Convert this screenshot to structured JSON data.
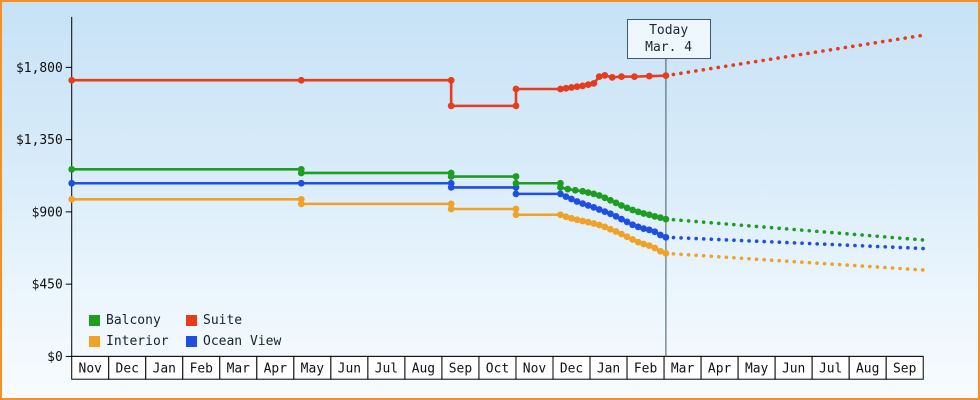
{
  "chart_data": {
    "type": "line",
    "title": "",
    "y_axis": {
      "ticks": [
        {
          "value": 0,
          "label": "$0"
        },
        {
          "value": 450,
          "label": "$450"
        },
        {
          "value": 900,
          "label": "$900"
        },
        {
          "value": 1350,
          "label": "$1,350"
        },
        {
          "value": 1800,
          "label": "$1,800"
        }
      ],
      "range": [
        0,
        2100
      ]
    },
    "x_axis": {
      "months": [
        "Nov",
        "Dec",
        "Jan",
        "Feb",
        "Mar",
        "Apr",
        "May",
        "Jun",
        "Jul",
        "Aug",
        "Sep",
        "Oct",
        "Nov",
        "Dec",
        "Jan",
        "Feb",
        "Mar",
        "Apr",
        "May",
        "Jun",
        "Jul",
        "Aug",
        "Sep"
      ],
      "range": [
        0,
        23
      ]
    },
    "today": {
      "x": 16.05,
      "label_line1": "Today",
      "label_line2": "Mar. 4"
    },
    "legend": [
      {
        "name": "Balcony",
        "color": "#1e9e20"
      },
      {
        "name": "Suite",
        "color": "#e73b1c"
      },
      {
        "name": "Interior",
        "color": "#f0a226"
      },
      {
        "name": "Ocean View",
        "color": "#1e4fe0"
      }
    ],
    "series": [
      {
        "name": "Interior",
        "color": "#f0a226",
        "history": [
          [
            0,
            978
          ],
          [
            6.2,
            978
          ],
          [
            6.2,
            950
          ],
          [
            10.25,
            950
          ],
          [
            10.25,
            918
          ],
          [
            12.0,
            918
          ],
          [
            12.0,
            882
          ],
          [
            13.2,
            882
          ],
          [
            13.35,
            870
          ],
          [
            13.5,
            860
          ],
          [
            13.65,
            851
          ],
          [
            13.8,
            843
          ],
          [
            13.95,
            836
          ],
          [
            14.1,
            828
          ],
          [
            14.25,
            818
          ],
          [
            14.4,
            806
          ],
          [
            14.55,
            792
          ],
          [
            14.7,
            778
          ],
          [
            14.85,
            762
          ],
          [
            15.0,
            745
          ],
          [
            15.15,
            728
          ],
          [
            15.3,
            712
          ],
          [
            15.45,
            700
          ],
          [
            15.6,
            690
          ],
          [
            15.75,
            675
          ],
          [
            15.9,
            655
          ],
          [
            16.05,
            642
          ]
        ],
        "forecast": [
          [
            16.05,
            642
          ],
          [
            23,
            538
          ]
        ]
      },
      {
        "name": "Ocean View",
        "color": "#1e4fe0",
        "history": [
          [
            0,
            1078
          ],
          [
            6.2,
            1078
          ],
          [
            10.25,
            1078
          ],
          [
            10.25,
            1052
          ],
          [
            12.0,
            1052
          ],
          [
            12.0,
            1012
          ],
          [
            13.2,
            1012
          ],
          [
            13.35,
            995
          ],
          [
            13.5,
            980
          ],
          [
            13.65,
            965
          ],
          [
            13.8,
            952
          ],
          [
            13.95,
            940
          ],
          [
            14.1,
            928
          ],
          [
            14.25,
            915
          ],
          [
            14.4,
            902
          ],
          [
            14.55,
            888
          ],
          [
            14.7,
            872
          ],
          [
            14.85,
            855
          ],
          [
            15.0,
            838
          ],
          [
            15.15,
            820
          ],
          [
            15.3,
            806
          ],
          [
            15.45,
            796
          ],
          [
            15.6,
            788
          ],
          [
            15.75,
            776
          ],
          [
            15.9,
            756
          ],
          [
            16.05,
            742
          ]
        ],
        "forecast": [
          [
            16.05,
            742
          ],
          [
            23,
            672
          ]
        ]
      },
      {
        "name": "Balcony",
        "color": "#1e9e20",
        "history": [
          [
            0,
            1165
          ],
          [
            6.2,
            1165
          ],
          [
            6.2,
            1142
          ],
          [
            10.25,
            1142
          ],
          [
            10.25,
            1120
          ],
          [
            12.0,
            1120
          ],
          [
            12.0,
            1078
          ],
          [
            13.2,
            1078
          ],
          [
            13.2,
            1052
          ],
          [
            13.4,
            1042
          ],
          [
            13.6,
            1035
          ],
          [
            13.8,
            1028
          ],
          [
            13.95,
            1020
          ],
          [
            14.1,
            1012
          ],
          [
            14.25,
            1002
          ],
          [
            14.4,
            988
          ],
          [
            14.55,
            972
          ],
          [
            14.7,
            956
          ],
          [
            14.85,
            940
          ],
          [
            15.0,
            925
          ],
          [
            15.15,
            912
          ],
          [
            15.3,
            900
          ],
          [
            15.45,
            890
          ],
          [
            15.6,
            882
          ],
          [
            15.75,
            872
          ],
          [
            15.9,
            864
          ],
          [
            16.05,
            855
          ]
        ],
        "forecast": [
          [
            16.05,
            855
          ],
          [
            23,
            725
          ]
        ]
      },
      {
        "name": "Suite",
        "color": "#e73b1c",
        "history": [
          [
            0,
            1720
          ],
          [
            6.2,
            1720
          ],
          [
            10.25,
            1720
          ],
          [
            10.25,
            1560
          ],
          [
            12.0,
            1560
          ],
          [
            12.0,
            1665
          ],
          [
            13.2,
            1665
          ],
          [
            13.35,
            1670
          ],
          [
            13.5,
            1675
          ],
          [
            13.65,
            1680
          ],
          [
            13.8,
            1685
          ],
          [
            13.95,
            1692
          ],
          [
            14.1,
            1700
          ],
          [
            14.25,
            1742
          ],
          [
            14.4,
            1750
          ],
          [
            14.6,
            1738
          ],
          [
            14.85,
            1742
          ],
          [
            15.2,
            1742
          ],
          [
            15.6,
            1745
          ],
          [
            16.05,
            1748
          ]
        ],
        "forecast": [
          [
            16.05,
            1748
          ],
          [
            23,
            2000
          ]
        ]
      }
    ]
  }
}
